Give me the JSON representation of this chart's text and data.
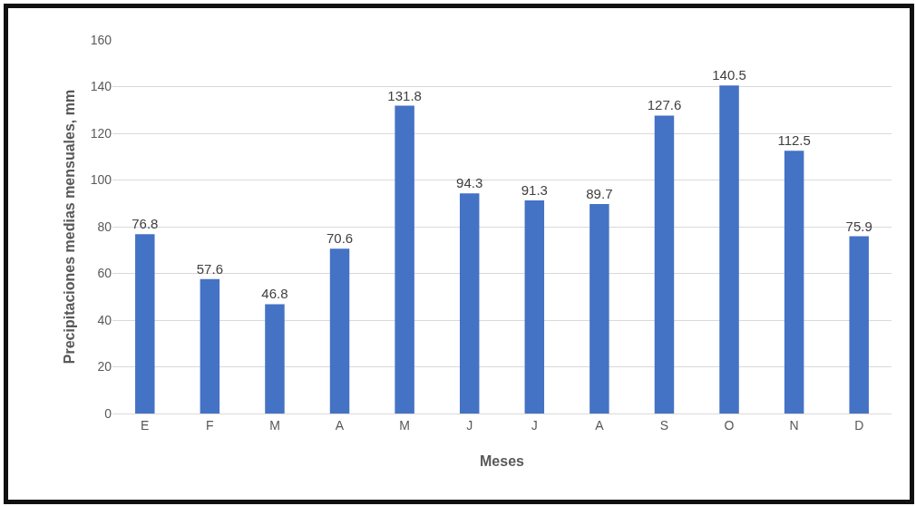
{
  "chart_data": {
    "type": "bar",
    "xlabel": "Meses",
    "ylabel": "Precipitaciones medias mensuales, mm",
    "categories": [
      "E",
      "F",
      "M",
      "A",
      "M",
      "J",
      "J",
      "A",
      "S",
      "O",
      "N",
      "D"
    ],
    "values": [
      76.8,
      57.6,
      46.8,
      70.6,
      131.8,
      94.3,
      91.3,
      89.7,
      127.6,
      140.5,
      112.5,
      75.9
    ],
    "color": "#4472c4",
    "ylim": [
      0,
      160
    ],
    "yticks": [
      0,
      20,
      40,
      60,
      80,
      100,
      120,
      140,
      160
    ],
    "grid": "y",
    "data_labels": true,
    "legend": false
  }
}
